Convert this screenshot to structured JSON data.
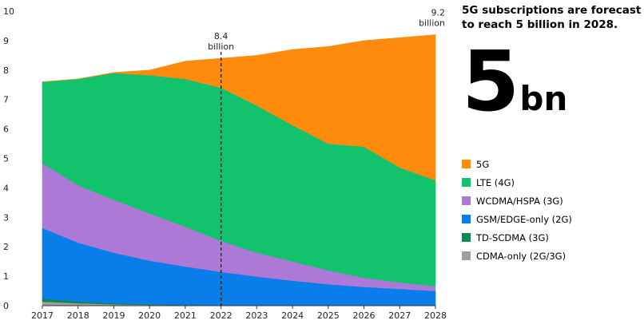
{
  "headline": "5G subscriptions are forecast to reach 5 billion in 2028.",
  "big_number": "5",
  "big_unit": "bn",
  "chart_data": {
    "type": "area",
    "stacked": true,
    "x": [
      2017,
      2018,
      2019,
      2020,
      2021,
      2022,
      2023,
      2024,
      2025,
      2026,
      2027,
      2028
    ],
    "ylim": [
      0,
      10
    ],
    "yticks": [
      0,
      1,
      2,
      3,
      4,
      5,
      6,
      7,
      8,
      9,
      10
    ],
    "grid": false,
    "legend_position": "right",
    "series": [
      {
        "name": "CDMA-only (2G/3G)",
        "color": "#9e9e9e",
        "values": [
          0.14,
          0.08,
          0.05,
          0.03,
          0.02,
          0.01,
          0.01,
          0.01,
          0,
          0,
          0,
          0
        ]
      },
      {
        "name": "TD-SCDMA (3G)",
        "color": "#0e8a4e",
        "values": [
          0.1,
          0.06,
          0.03,
          0.02,
          0.01,
          0,
          0,
          0,
          0,
          0,
          0,
          0
        ]
      },
      {
        "name": "GSM/EDGE-only (2G)",
        "color": "#0a7ee8",
        "values": [
          2.4,
          2.0,
          1.72,
          1.48,
          1.3,
          1.14,
          0.98,
          0.84,
          0.73,
          0.64,
          0.57,
          0.5
        ]
      },
      {
        "name": "WCDMA/HSPA (3G)",
        "color": "#ad79d6",
        "values": [
          2.2,
          1.95,
          1.8,
          1.6,
          1.35,
          1.05,
          0.81,
          0.65,
          0.47,
          0.31,
          0.22,
          0.16
        ]
      },
      {
        "name": "LTE (4G)",
        "color": "#12c26d",
        "values": [
          2.76,
          3.61,
          4.3,
          4.7,
          5.02,
          5.2,
          5.0,
          4.63,
          4.3,
          4.45,
          3.9,
          3.6
        ]
      },
      {
        "name": "5G",
        "color": "#ff8b0d",
        "values": [
          0,
          0,
          0.02,
          0.17,
          0.6,
          1.0,
          1.7,
          2.57,
          3.3,
          3.6,
          4.41,
          4.94
        ]
      }
    ],
    "annotations": [
      {
        "x": 2022,
        "y": 8.4,
        "value": "8.4",
        "unit": "billion",
        "dashed_line": true
      },
      {
        "x": 2028,
        "y": 9.2,
        "value": "9.2",
        "unit": "billion"
      }
    ]
  }
}
